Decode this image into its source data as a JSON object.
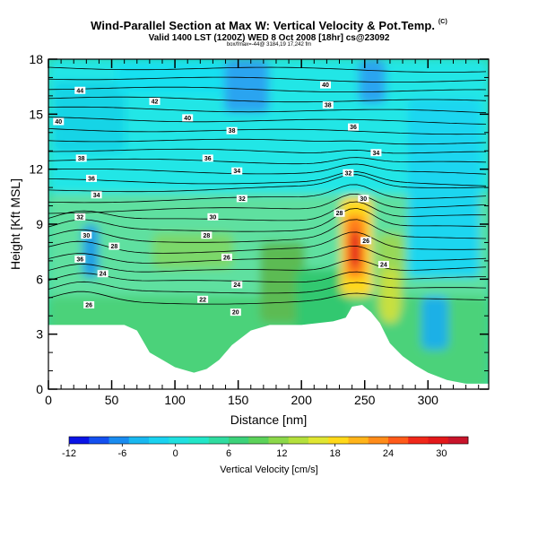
{
  "header": {
    "title": "Wind-Parallel Section at Max W: Vertical Velocity & Pot.Temp.",
    "title_mark": "(C)",
    "subtitle": "Valid 1400 LST (1200Z) WED 8 Oct 2008 [18hr] cs@23092",
    "subsub": "box/fmax=-44@ 3184,19 17,242 fm"
  },
  "chart_data": {
    "type": "heatmap",
    "xlabel": "Distance [nm]",
    "ylabel": "Height [Kft MSL]",
    "xlim": [
      0,
      348
    ],
    "ylim": [
      0,
      18
    ],
    "xticks": [
      "0",
      "50",
      "100",
      "150",
      "200",
      "250",
      "300"
    ],
    "yticks": [
      "0",
      "3",
      "6",
      "9",
      "12",
      "15",
      "18"
    ],
    "colorbar": {
      "label": "Vertical Velocity [cm/s]",
      "min": -12,
      "max": 33,
      "ticks": [
        "-12",
        "-6",
        "0",
        "6",
        "12",
        "18",
        "24",
        "30"
      ]
    },
    "terrain_kft": [
      [
        0,
        3.5
      ],
      [
        50,
        3.5
      ],
      [
        60,
        3.5
      ],
      [
        70,
        3.2
      ],
      [
        80,
        2.0
      ],
      [
        90,
        1.6
      ],
      [
        100,
        1.2
      ],
      [
        110,
        1.0
      ],
      [
        115,
        0.9
      ],
      [
        125,
        1.1
      ],
      [
        135,
        1.6
      ],
      [
        145,
        2.4
      ],
      [
        160,
        3.2
      ],
      [
        175,
        3.5
      ],
      [
        200,
        3.5
      ],
      [
        225,
        3.7
      ],
      [
        235,
        3.9
      ],
      [
        240,
        4.5
      ],
      [
        248,
        4.6
      ],
      [
        255,
        4.2
      ],
      [
        262,
        3.6
      ],
      [
        270,
        2.5
      ],
      [
        280,
        1.8
      ],
      [
        290,
        1.3
      ],
      [
        300,
        0.9
      ],
      [
        315,
        0.5
      ],
      [
        330,
        0.3
      ],
      [
        348,
        0.3
      ]
    ],
    "theta_contour_labels": [
      {
        "text": "44",
        "x": 25,
        "y": 16.3
      },
      {
        "text": "42",
        "x": 84,
        "y": 15.7
      },
      {
        "text": "40",
        "x": 110,
        "y": 14.8
      },
      {
        "text": "38",
        "x": 145,
        "y": 14.1
      },
      {
        "text": "40",
        "x": 219,
        "y": 16.6
      },
      {
        "text": "38",
        "x": 221,
        "y": 15.5
      },
      {
        "text": "36",
        "x": 241,
        "y": 14.3
      },
      {
        "text": "34",
        "x": 259,
        "y": 12.9
      },
      {
        "text": "40",
        "x": 8,
        "y": 14.6
      },
      {
        "text": "38",
        "x": 26,
        "y": 12.6
      },
      {
        "text": "36",
        "x": 126,
        "y": 12.6
      },
      {
        "text": "34",
        "x": 149,
        "y": 11.9
      },
      {
        "text": "32",
        "x": 237,
        "y": 11.8
      },
      {
        "text": "36",
        "x": 34,
        "y": 11.5
      },
      {
        "text": "34",
        "x": 38,
        "y": 10.6
      },
      {
        "text": "32",
        "x": 153,
        "y": 10.4
      },
      {
        "text": "30",
        "x": 249,
        "y": 10.4
      },
      {
        "text": "32",
        "x": 25,
        "y": 9.4
      },
      {
        "text": "30",
        "x": 130,
        "y": 9.4
      },
      {
        "text": "28",
        "x": 230,
        "y": 9.6
      },
      {
        "text": "30",
        "x": 30,
        "y": 8.4
      },
      {
        "text": "28",
        "x": 125,
        "y": 8.4
      },
      {
        "text": "28",
        "x": 52,
        "y": 7.8
      },
      {
        "text": "26",
        "x": 251,
        "y": 8.1
      },
      {
        "text": "36",
        "x": 25,
        "y": 7.1
      },
      {
        "text": "26",
        "x": 141,
        "y": 7.2
      },
      {
        "text": "24",
        "x": 265,
        "y": 6.8
      },
      {
        "text": "24",
        "x": 43,
        "y": 6.3
      },
      {
        "text": "24",
        "x": 149,
        "y": 5.7
      },
      {
        "text": "22",
        "x": 122,
        "y": 4.9
      },
      {
        "text": "26",
        "x": 32,
        "y": 4.6
      },
      {
        "text": "20",
        "x": 148,
        "y": 4.2
      }
    ]
  }
}
